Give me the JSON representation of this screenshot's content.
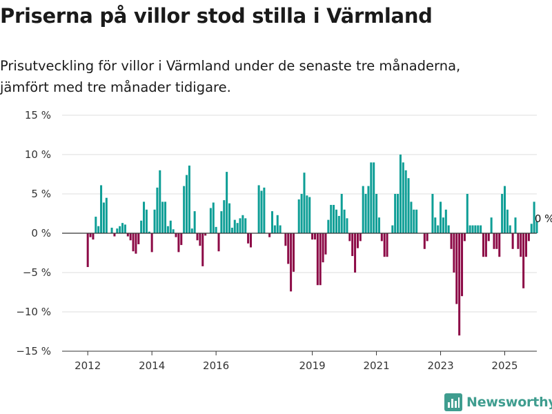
{
  "header": {
    "title": "Priserna på villor stod stilla i Värmland",
    "subtitle_line1": "Prisutveckling för villor i Värmland under de senaste tre månaderna,",
    "subtitle_line2": "jämfört med tre månader tidigare."
  },
  "brand": {
    "name": "Newsworthy"
  },
  "colors": {
    "positive": "#0e9e96",
    "negative": "#8c0a46",
    "grid": "#dddddd",
    "zero_line": "#333333",
    "brand": "#3f9d8f"
  },
  "chart_data": {
    "type": "bar",
    "ylim": [
      -15,
      15
    ],
    "ytick_values": [
      15,
      10,
      5,
      0,
      -5,
      -10,
      -15
    ],
    "ytick_labels": [
      "15 %",
      "10 %",
      "5 %",
      "0 %",
      "−5 %",
      "−10 %",
      "−15 %"
    ],
    "xtick_values": [
      2012.0,
      2014.0,
      2016.0,
      2019.0,
      2021.0,
      2023.0,
      2025.0
    ],
    "xtick_labels": [
      "2012",
      "2014",
      "2016",
      "2019",
      "2021",
      "2023",
      "2025"
    ],
    "xlim": [
      2011.2,
      2026.0
    ],
    "start_month": "2012-01",
    "last_value_label": "0 %",
    "values": [
      -4.3,
      -0.5,
      -0.8,
      2.1,
      0.9,
      6.1,
      3.9,
      4.5,
      0,
      0.7,
      -0.4,
      0.6,
      0.9,
      1.3,
      1.1,
      -0.4,
      -0.9,
      -2.3,
      -2.6,
      -1.4,
      1.6,
      4.0,
      3.0,
      0.2,
      -2.4,
      3.0,
      5.8,
      8.0,
      4.0,
      4.0,
      0.9,
      1.6,
      0.5,
      -0.5,
      -2.4,
      -1.5,
      6.0,
      7.4,
      8.6,
      0.6,
      2.8,
      -0.9,
      -1.6,
      -4.2,
      -0.3,
      0,
      3.2,
      3.9,
      0.8,
      -2.3,
      2.8,
      4.2,
      7.8,
      3.8,
      0.7,
      1.7,
      1.3,
      1.9,
      2.3,
      1.9,
      -1.3,
      -1.8,
      0,
      0,
      6.1,
      5.4,
      5.8,
      0,
      -0.5,
      2.8,
      1.0,
      2.3,
      1.0,
      0,
      -1.6,
      -3.9,
      -7.4,
      -4.9,
      0,
      4.3,
      5.0,
      7.7,
      4.8,
      4.6,
      -0.8,
      -0.8,
      -6.6,
      -6.6,
      -3.7,
      -2.7,
      1.7,
      3.6,
      3.6,
      3.0,
      2.2,
      5.0,
      3.0,
      1.9,
      -1.0,
      -2.9,
      -5.0,
      -1.9,
      -1.0,
      6.0,
      5.0,
      6.0,
      9.0,
      9.0,
      5.0,
      2.0,
      -1.0,
      -3.0,
      -3.0,
      0,
      1.0,
      5.0,
      5.0,
      10.0,
      9.0,
      8.0,
      7.0,
      4.0,
      3.0,
      3.0,
      0,
      0,
      -2.0,
      -1.0,
      0,
      5.0,
      2.0,
      1.0,
      4.0,
      2.0,
      3.0,
      1.0,
      -2.0,
      -5.0,
      -9.0,
      -13.0,
      -8.0,
      -1.0,
      5.0,
      1.0,
      1.0,
      1.0,
      1.0,
      1.0,
      -3.0,
      -3.0,
      -1.0,
      2.0,
      -2.0,
      -2.0,
      -3.0,
      5.0,
      6.0,
      3.0,
      1.0,
      -2.0,
      2.0,
      -2.0,
      -3.0,
      -7.0,
      -3.0,
      -1.0,
      1.2,
      4.0,
      1.5,
      0
    ]
  }
}
